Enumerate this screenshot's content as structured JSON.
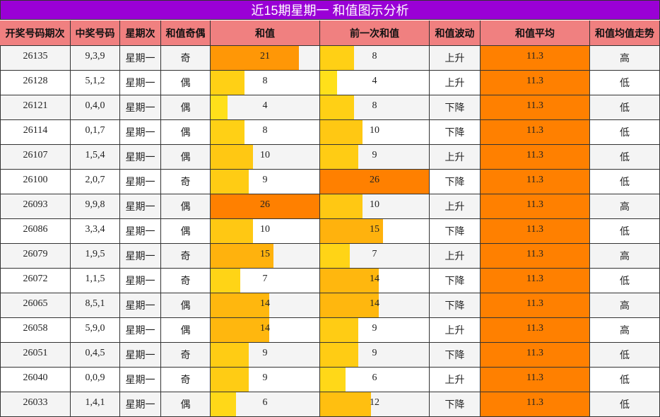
{
  "title": "近15期星期一 和值图示分析",
  "headers": [
    "开奖号码期次",
    "中奖号码",
    "星期次",
    "和值奇偶",
    "和值",
    "前一次和值",
    "和值波动",
    "和值平均",
    "和值均值走势"
  ],
  "rows": [
    [
      "26135",
      "9,3,9",
      "星期一",
      "奇",
      21,
      8,
      "上升",
      11.3,
      "高"
    ],
    [
      "26128",
      "5,1,2",
      "星期一",
      "偶",
      8,
      4,
      "上升",
      11.3,
      "低"
    ],
    [
      "26121",
      "0,4,0",
      "星期一",
      "偶",
      4,
      8,
      "下降",
      11.3,
      "低"
    ],
    [
      "26114",
      "0,1,7",
      "星期一",
      "偶",
      8,
      10,
      "下降",
      11.3,
      "低"
    ],
    [
      "26107",
      "1,5,4",
      "星期一",
      "偶",
      10,
      9,
      "上升",
      11.3,
      "低"
    ],
    [
      "26100",
      "2,0,7",
      "星期一",
      "奇",
      9,
      26,
      "下降",
      11.3,
      "低"
    ],
    [
      "26093",
      "9,9,8",
      "星期一",
      "偶",
      26,
      10,
      "上升",
      11.3,
      "高"
    ],
    [
      "26086",
      "3,3,4",
      "星期一",
      "偶",
      10,
      15,
      "下降",
      11.3,
      "低"
    ],
    [
      "26079",
      "1,9,5",
      "星期一",
      "奇",
      15,
      7,
      "上升",
      11.3,
      "高"
    ],
    [
      "26072",
      "1,1,5",
      "星期一",
      "奇",
      7,
      14,
      "下降",
      11.3,
      "低"
    ],
    [
      "26065",
      "8,5,1",
      "星期一",
      "偶",
      14,
      14,
      "下降",
      11.3,
      "高"
    ],
    [
      "26058",
      "5,9,0",
      "星期一",
      "偶",
      14,
      9,
      "上升",
      11.3,
      "高"
    ],
    [
      "26051",
      "0,4,5",
      "星期一",
      "奇",
      9,
      9,
      "下降",
      11.3,
      "低"
    ],
    [
      "26040",
      "0,0,9",
      "星期一",
      "奇",
      9,
      6,
      "上升",
      11.3,
      "低"
    ],
    [
      "26033",
      "1,4,1",
      "星期一",
      "偶",
      6,
      12,
      "下降",
      11.3,
      "低"
    ]
  ]
}
